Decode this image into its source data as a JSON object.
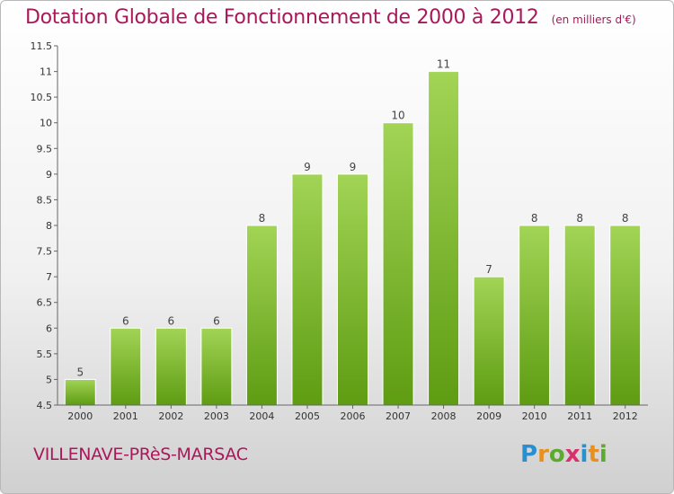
{
  "header": {
    "title": "Dotation Globale de Fonctionnement de 2000 à 2012",
    "subtitle": "(en milliers d'€)"
  },
  "footer": {
    "commune": "VILLENAVE-PRèS-MARSAC",
    "brand": [
      "P",
      "r",
      "o",
      "x",
      "i",
      "t",
      "i"
    ],
    "brand_colors": [
      "#2a8fd0",
      "#e8901e",
      "#5caa2e",
      "#d8306a",
      "#2a8fd0",
      "#e8901e",
      "#5caa2e"
    ]
  },
  "colors": {
    "bar_top": "#a2d456",
    "bar_bottom": "#5e9c12",
    "title": "#a8185a"
  },
  "chart_data": {
    "type": "bar",
    "categories": [
      "2000",
      "2001",
      "2002",
      "2003",
      "2004",
      "2005",
      "2006",
      "2007",
      "2008",
      "2009",
      "2010",
      "2011",
      "2012"
    ],
    "values": [
      5,
      6,
      6,
      6,
      8,
      9,
      9,
      10,
      11,
      7,
      8,
      8,
      8
    ],
    "ylim": [
      4.5,
      11.5
    ],
    "yticks": [
      "4.5",
      "5",
      "5.5",
      "6",
      "6.5",
      "7",
      "7.5",
      "8",
      "8.5",
      "9",
      "9.5",
      "10",
      "10.5",
      "11",
      "11.5"
    ],
    "grid": false
  }
}
